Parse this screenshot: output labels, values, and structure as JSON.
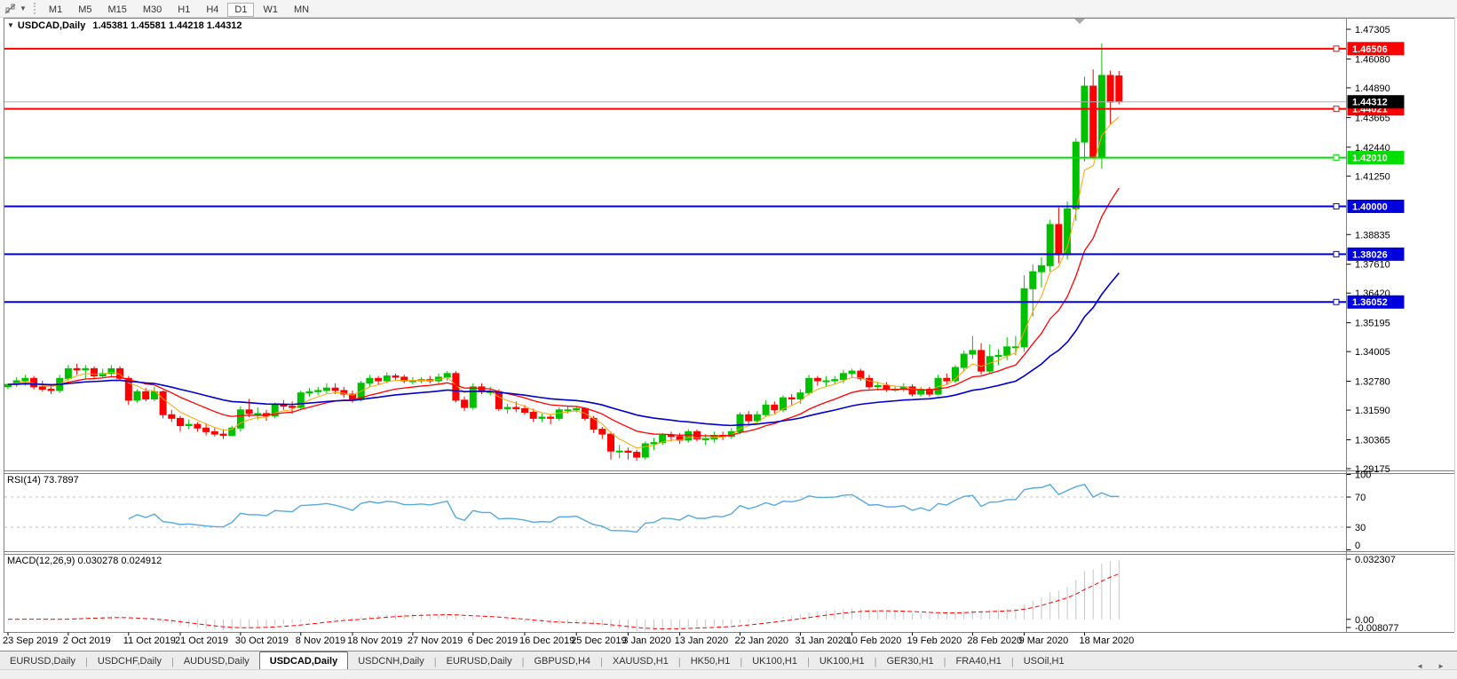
{
  "toolbar": {
    "timeframes": [
      "M1",
      "M5",
      "M15",
      "M30",
      "H1",
      "H4",
      "D1",
      "W1",
      "MN"
    ],
    "active": "D1"
  },
  "title": {
    "caret": "▼",
    "symbol": "USDCAD,Daily",
    "ohlc": "1.45381 1.45581 1.44218 1.44312"
  },
  "tabs": {
    "items": [
      "EURUSD,Daily",
      "USDCHF,Daily",
      "AUDUSD,Daily",
      "USDCAD,Daily",
      "USDCNH,Daily",
      "EURUSD,Daily",
      "GBPUSD,H4",
      "XAUUSD,H1",
      "HK50,H1",
      "UK100,H1",
      "UK100,H1",
      "GER30,H1",
      "FRA40,H1",
      "USOil,H1"
    ],
    "active_index": 3,
    "nav_left": "◄",
    "nav_right": "►"
  },
  "chart_data": {
    "type": "candlestick",
    "symbol": "USDCAD",
    "timeframe": "Daily",
    "bull_color": "#00c000",
    "bear_color": "#ff0000",
    "price_axis": {
      "min": 1.29175,
      "max": 1.47305,
      "ticks": [
        "1.47305",
        "1.46080",
        "1.44890",
        "1.43665",
        "1.42440",
        "1.41250",
        "1.38835",
        "1.37610",
        "1.36420",
        "1.35195",
        "1.34005",
        "1.32780",
        "1.31590",
        "1.30365",
        "1.29175"
      ]
    },
    "hlines": [
      {
        "label": "1.46506",
        "color": "#ff0000"
      },
      {
        "label": "1.44021",
        "color": "#ff0000"
      },
      {
        "label": "1.42010",
        "color": "#00dd00"
      },
      {
        "label": "1.40000",
        "color": "#0000dc"
      },
      {
        "label": "1.38026",
        "color": "#0000dc"
      },
      {
        "label": "1.36052",
        "color": "#0000dc"
      }
    ],
    "current_price": {
      "label": "1.44312",
      "line_color": "#adadad",
      "box_color": "#000000"
    },
    "mas": [
      {
        "period": 5,
        "color": "#ffa500",
        "width": 1
      },
      {
        "period": 14,
        "color": "#ff0000",
        "width": 1.3
      },
      {
        "period": 34,
        "color": "#0000cc",
        "width": 1.6
      }
    ],
    "x_labels": [
      {
        "text": "23 Sep 2019",
        "bar": 0
      },
      {
        "text": "2 Oct 2019",
        "bar": 7
      },
      {
        "text": "11 Oct 2019",
        "bar": 14
      },
      {
        "text": "21 Oct 2019",
        "bar": 20
      },
      {
        "text": "30 Oct 2019",
        "bar": 27
      },
      {
        "text": "8 Nov 2019",
        "bar": 34
      },
      {
        "text": "18 Nov 2019",
        "bar": 40
      },
      {
        "text": "27 Nov 2019",
        "bar": 47
      },
      {
        "text": "6 Dec 2019",
        "bar": 54
      },
      {
        "text": "16 Dec 2019",
        "bar": 60
      },
      {
        "text": "25 Dec 2019",
        "bar": 66
      },
      {
        "text": "3 Jan 2020",
        "bar": 72
      },
      {
        "text": "13 Jan 2020",
        "bar": 78
      },
      {
        "text": "22 Jan 2020",
        "bar": 85
      },
      {
        "text": "31 Jan 2020",
        "bar": 92
      },
      {
        "text": "10 Feb 2020",
        "bar": 98
      },
      {
        "text": "19 Feb 2020",
        "bar": 105
      },
      {
        "text": "28 Feb 2020",
        "bar": 112
      },
      {
        "text": "9 Mar 2020",
        "bar": 118
      },
      {
        "text": "18 Mar 2020",
        "bar": 125
      }
    ],
    "rsi": {
      "label": "RSI(14) 73.7897",
      "period": 14,
      "color": "#56a9de",
      "levels": [
        "100",
        "70",
        "30",
        "0"
      ],
      "dashed_levels": [
        70,
        30
      ]
    },
    "macd": {
      "label": "MACD(12,26,9) 0.030278 0.024912",
      "fast": 12,
      "slow": 26,
      "signal": 9,
      "axis_top": "0.032307",
      "axis_zero": "0.00",
      "axis_bottom": "-0.008077",
      "hist_color": "#c6c6c6",
      "signal_color": "#ff0000"
    },
    "candles": [
      [
        1.3255,
        1.327,
        1.3245,
        1.3265
      ],
      [
        1.3265,
        1.3295,
        1.3255,
        1.328
      ],
      [
        1.328,
        1.3305,
        1.326,
        1.329
      ],
      [
        1.329,
        1.33,
        1.3245,
        1.3255
      ],
      [
        1.3255,
        1.328,
        1.3235,
        1.3245
      ],
      [
        1.3245,
        1.326,
        1.3225,
        1.324
      ],
      [
        1.324,
        1.3305,
        1.323,
        1.329
      ],
      [
        1.329,
        1.3345,
        1.328,
        1.333
      ],
      [
        1.333,
        1.335,
        1.3305,
        1.3325
      ],
      [
        1.3325,
        1.3345,
        1.3285,
        1.333
      ],
      [
        1.333,
        1.334,
        1.329,
        1.33
      ],
      [
        1.33,
        1.333,
        1.329,
        1.331
      ],
      [
        1.331,
        1.3345,
        1.3295,
        1.333
      ],
      [
        1.333,
        1.334,
        1.328,
        1.329
      ],
      [
        1.329,
        1.33,
        1.318,
        1.32
      ],
      [
        1.32,
        1.3245,
        1.319,
        1.3235
      ],
      [
        1.3235,
        1.325,
        1.3195,
        1.3205
      ],
      [
        1.3205,
        1.3255,
        1.3195,
        1.3235
      ],
      [
        1.3235,
        1.324,
        1.3125,
        1.314
      ],
      [
        1.314,
        1.316,
        1.311,
        1.3125
      ],
      [
        1.3125,
        1.3135,
        1.307,
        1.3095
      ],
      [
        1.3095,
        1.312,
        1.308,
        1.31
      ],
      [
        1.31,
        1.311,
        1.307,
        1.3085
      ],
      [
        1.3085,
        1.3105,
        1.3055,
        1.307
      ],
      [
        1.307,
        1.3085,
        1.305,
        1.306
      ],
      [
        1.306,
        1.308,
        1.304,
        1.3055
      ],
      [
        1.3055,
        1.3095,
        1.305,
        1.3085
      ],
      [
        1.3085,
        1.3175,
        1.307,
        1.316
      ],
      [
        1.316,
        1.3205,
        1.313,
        1.3145
      ],
      [
        1.3145,
        1.317,
        1.312,
        1.3145
      ],
      [
        1.3145,
        1.316,
        1.3115,
        1.3135
      ],
      [
        1.3135,
        1.319,
        1.3125,
        1.318
      ],
      [
        1.318,
        1.32,
        1.316,
        1.3175
      ],
      [
        1.3175,
        1.3195,
        1.3145,
        1.317
      ],
      [
        1.317,
        1.324,
        1.316,
        1.323
      ],
      [
        1.323,
        1.325,
        1.3215,
        1.3235
      ],
      [
        1.3235,
        1.3255,
        1.322,
        1.324
      ],
      [
        1.324,
        1.327,
        1.3225,
        1.325
      ],
      [
        1.325,
        1.327,
        1.3225,
        1.324
      ],
      [
        1.324,
        1.3255,
        1.321,
        1.3225
      ],
      [
        1.3225,
        1.324,
        1.319,
        1.3205
      ],
      [
        1.3205,
        1.328,
        1.3195,
        1.327
      ],
      [
        1.327,
        1.3305,
        1.3255,
        1.329
      ],
      [
        1.329,
        1.33,
        1.3265,
        1.328
      ],
      [
        1.328,
        1.3315,
        1.327,
        1.33
      ],
      [
        1.33,
        1.331,
        1.328,
        1.3295
      ],
      [
        1.3295,
        1.3305,
        1.327,
        1.328
      ],
      [
        1.328,
        1.3295,
        1.3265,
        1.328
      ],
      [
        1.328,
        1.3295,
        1.327,
        1.3285
      ],
      [
        1.3285,
        1.33,
        1.327,
        1.328
      ],
      [
        1.328,
        1.331,
        1.3265,
        1.3295
      ],
      [
        1.3295,
        1.332,
        1.328,
        1.331
      ],
      [
        1.331,
        1.332,
        1.319,
        1.32
      ],
      [
        1.32,
        1.3215,
        1.3155,
        1.317
      ],
      [
        1.317,
        1.327,
        1.316,
        1.3255
      ],
      [
        1.3255,
        1.327,
        1.3225,
        1.3235
      ],
      [
        1.3235,
        1.3255,
        1.322,
        1.3235
      ],
      [
        1.3235,
        1.3245,
        1.3155,
        1.3165
      ],
      [
        1.3165,
        1.3185,
        1.3145,
        1.317
      ],
      [
        1.317,
        1.3195,
        1.315,
        1.3165
      ],
      [
        1.3165,
        1.318,
        1.314,
        1.315
      ],
      [
        1.315,
        1.3165,
        1.311,
        1.3125
      ],
      [
        1.3125,
        1.3145,
        1.311,
        1.313
      ],
      [
        1.313,
        1.314,
        1.31,
        1.3125
      ],
      [
        1.3125,
        1.317,
        1.3115,
        1.316
      ],
      [
        1.316,
        1.3175,
        1.3145,
        1.316
      ],
      [
        1.316,
        1.3175,
        1.315,
        1.3165
      ],
      [
        1.3165,
        1.317,
        1.3115,
        1.3125
      ],
      [
        1.3125,
        1.3135,
        1.3065,
        1.308
      ],
      [
        1.308,
        1.309,
        1.304,
        1.306
      ],
      [
        1.306,
        1.307,
        1.2955,
        1.299
      ],
      [
        1.299,
        1.3015,
        1.296,
        1.299
      ],
      [
        1.299,
        1.3005,
        1.2955,
        1.2985
      ],
      [
        1.2985,
        1.2995,
        1.295,
        1.2965
      ],
      [
        1.2965,
        1.303,
        1.2955,
        1.302
      ],
      [
        1.302,
        1.3045,
        1.2995,
        1.3025
      ],
      [
        1.3025,
        1.3065,
        1.3015,
        1.3055
      ],
      [
        1.3055,
        1.307,
        1.303,
        1.305
      ],
      [
        1.305,
        1.3065,
        1.302,
        1.3035
      ],
      [
        1.3035,
        1.308,
        1.3025,
        1.307
      ],
      [
        1.307,
        1.308,
        1.303,
        1.304
      ],
      [
        1.304,
        1.306,
        1.3015,
        1.304
      ],
      [
        1.304,
        1.307,
        1.3025,
        1.3055
      ],
      [
        1.3055,
        1.307,
        1.3035,
        1.305
      ],
      [
        1.305,
        1.3085,
        1.304,
        1.307
      ],
      [
        1.307,
        1.315,
        1.306,
        1.314
      ],
      [
        1.314,
        1.3155,
        1.31,
        1.3115
      ],
      [
        1.3115,
        1.3155,
        1.3105,
        1.314
      ],
      [
        1.314,
        1.32,
        1.313,
        1.318
      ],
      [
        1.318,
        1.3195,
        1.3145,
        1.316
      ],
      [
        1.316,
        1.322,
        1.315,
        1.321
      ],
      [
        1.321,
        1.3225,
        1.318,
        1.3205
      ],
      [
        1.3205,
        1.3245,
        1.3185,
        1.323
      ],
      [
        1.323,
        1.3305,
        1.322,
        1.329
      ],
      [
        1.329,
        1.33,
        1.326,
        1.328
      ],
      [
        1.328,
        1.33,
        1.3255,
        1.328
      ],
      [
        1.328,
        1.33,
        1.3265,
        1.3285
      ],
      [
        1.3285,
        1.3325,
        1.327,
        1.331
      ],
      [
        1.331,
        1.333,
        1.3295,
        1.332
      ],
      [
        1.332,
        1.333,
        1.328,
        1.329
      ],
      [
        1.329,
        1.3305,
        1.3245,
        1.3255
      ],
      [
        1.3255,
        1.3275,
        1.324,
        1.326
      ],
      [
        1.326,
        1.3275,
        1.3235,
        1.3245
      ],
      [
        1.3245,
        1.326,
        1.3235,
        1.3245
      ],
      [
        1.3245,
        1.327,
        1.3235,
        1.3255
      ],
      [
        1.3255,
        1.3265,
        1.3215,
        1.3225
      ],
      [
        1.3225,
        1.3255,
        1.3215,
        1.3245
      ],
      [
        1.3245,
        1.3255,
        1.3215,
        1.3225
      ],
      [
        1.3225,
        1.3305,
        1.322,
        1.329
      ],
      [
        1.329,
        1.331,
        1.3265,
        1.328
      ],
      [
        1.328,
        1.3345,
        1.327,
        1.3335
      ],
      [
        1.3335,
        1.3405,
        1.332,
        1.339
      ],
      [
        1.339,
        1.3465,
        1.337,
        1.3405
      ],
      [
        1.3405,
        1.3435,
        1.3305,
        1.332
      ],
      [
        1.332,
        1.343,
        1.331,
        1.338
      ],
      [
        1.338,
        1.341,
        1.3345,
        1.3385
      ],
      [
        1.3385,
        1.346,
        1.3365,
        1.342
      ],
      [
        1.342,
        1.3465,
        1.3385,
        1.342
      ],
      [
        1.342,
        1.3715,
        1.34,
        1.366
      ],
      [
        1.366,
        1.376,
        1.3545,
        1.373
      ],
      [
        1.373,
        1.379,
        1.3665,
        1.3755
      ],
      [
        1.3755,
        1.3945,
        1.373,
        1.3925
      ],
      [
        1.3925,
        1.3995,
        1.3765,
        1.38
      ],
      [
        1.38,
        1.402,
        1.378,
        1.399
      ],
      [
        1.399,
        1.428,
        1.394,
        1.4265
      ],
      [
        1.4265,
        1.4535,
        1.4185,
        1.4496
      ],
      [
        1.4496,
        1.4565,
        1.4195,
        1.4204
      ],
      [
        1.4204,
        1.4672,
        1.4155,
        1.454
      ],
      [
        1.454,
        1.456,
        1.434,
        1.443
      ],
      [
        1.45381,
        1.45581,
        1.44218,
        1.44312
      ]
    ]
  }
}
